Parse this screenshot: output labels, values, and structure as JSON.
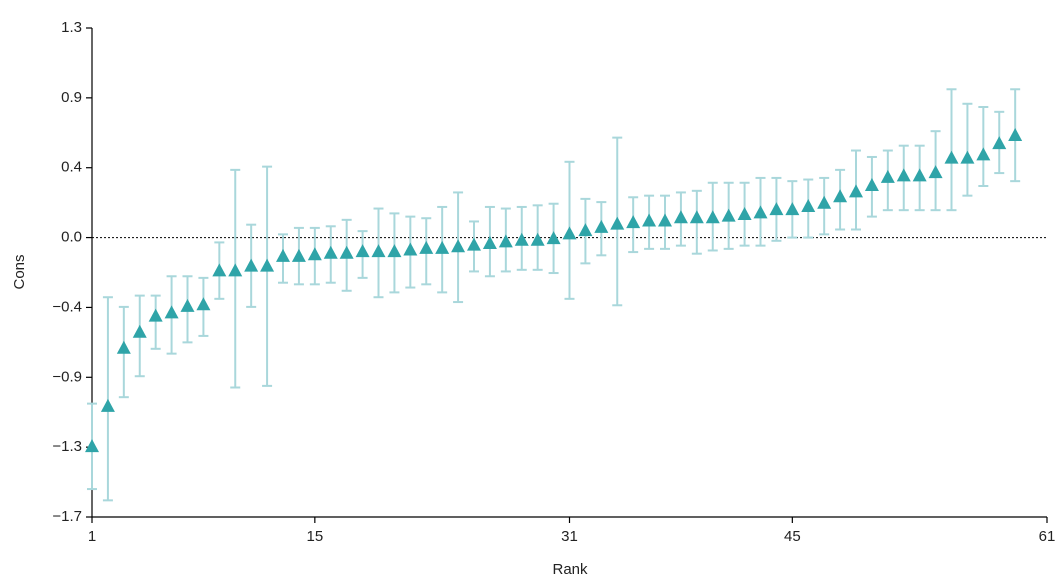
{
  "chart_data": {
    "type": "errorbar",
    "x_label": "Rank",
    "y_label": "Cons",
    "x": [
      1,
      2,
      3,
      4,
      5,
      6,
      7,
      8,
      9,
      10,
      11,
      12,
      13,
      14,
      15,
      16,
      17,
      18,
      19,
      20,
      21,
      22,
      23,
      24,
      25,
      26,
      27,
      28,
      29,
      30,
      31,
      32,
      33,
      34,
      35,
      36,
      37,
      38,
      39,
      40,
      41,
      42,
      43,
      44,
      45,
      46,
      47,
      48,
      49,
      50,
      51,
      52,
      53,
      54,
      55,
      56,
      57,
      58,
      59
    ],
    "values": [
      -1.3,
      -1.05,
      -0.69,
      -0.59,
      -0.49,
      -0.47,
      -0.43,
      -0.42,
      -0.21,
      -0.21,
      -0.18,
      -0.18,
      -0.12,
      -0.12,
      -0.11,
      -0.1,
      -0.1,
      -0.09,
      -0.09,
      -0.09,
      -0.08,
      -0.07,
      -0.07,
      -0.06,
      -0.05,
      -0.04,
      -0.03,
      -0.02,
      -0.02,
      -0.01,
      0.02,
      0.04,
      0.06,
      0.08,
      0.09,
      0.1,
      0.1,
      0.12,
      0.12,
      0.12,
      0.13,
      0.14,
      0.15,
      0.17,
      0.17,
      0.19,
      0.21,
      0.25,
      0.28,
      0.32,
      0.37,
      0.38,
      0.38,
      0.4,
      0.49,
      0.49,
      0.51,
      0.58,
      0.63
    ],
    "upper": [
      -1.03,
      -0.37,
      -0.43,
      -0.36,
      -0.36,
      -0.24,
      -0.24,
      -0.25,
      -0.03,
      0.42,
      0.08,
      0.44,
      0.02,
      0.06,
      0.06,
      0.07,
      0.11,
      0.04,
      0.18,
      0.15,
      0.13,
      0.12,
      0.19,
      0.28,
      0.1,
      0.19,
      0.18,
      0.19,
      0.2,
      0.21,
      0.47,
      0.24,
      0.22,
      0.62,
      0.25,
      0.26,
      0.26,
      0.28,
      0.29,
      0.34,
      0.34,
      0.34,
      0.37,
      0.37,
      0.35,
      0.36,
      0.37,
      0.42,
      0.54,
      0.5,
      0.54,
      0.57,
      0.57,
      0.66,
      0.92,
      0.83,
      0.81,
      0.78,
      0.92
    ],
    "lower": [
      -1.56,
      -1.63,
      -0.99,
      -0.86,
      -0.69,
      -0.72,
      -0.65,
      -0.61,
      -0.38,
      -0.93,
      -0.43,
      -0.92,
      -0.28,
      -0.29,
      -0.29,
      -0.28,
      -0.33,
      -0.25,
      -0.37,
      -0.34,
      -0.31,
      -0.29,
      -0.34,
      -0.4,
      -0.21,
      -0.24,
      -0.21,
      -0.2,
      -0.2,
      -0.22,
      -0.38,
      -0.16,
      -0.11,
      -0.42,
      -0.09,
      -0.07,
      -0.07,
      -0.05,
      -0.1,
      -0.08,
      -0.07,
      -0.05,
      -0.05,
      -0.02,
      0.0,
      0.0,
      0.02,
      0.05,
      0.05,
      0.13,
      0.17,
      0.17,
      0.17,
      0.17,
      0.17,
      0.26,
      0.32,
      0.4,
      0.35
    ],
    "color": "#2fa4a8",
    "error_color": "#a9d7db",
    "reference_line": 0,
    "xlim": [
      1,
      61
    ],
    "xticks": [
      1,
      15,
      31,
      45,
      61
    ],
    "ylim": [
      -1.7333,
      1.3
    ],
    "yticks": [
      {
        "value": 1.3,
        "label": "1.3"
      },
      {
        "value": 0.8667,
        "label": "0.9"
      },
      {
        "value": 0.4333,
        "label": "0.4"
      },
      {
        "value": 0,
        "label": "0.0"
      },
      {
        "value": -0.4333,
        "label": "−0.4"
      },
      {
        "value": -0.8667,
        "label": "−0.9"
      },
      {
        "value": -1.3,
        "label": "−1.3"
      },
      {
        "value": -1.7333,
        "label": "−1.7"
      }
    ]
  }
}
